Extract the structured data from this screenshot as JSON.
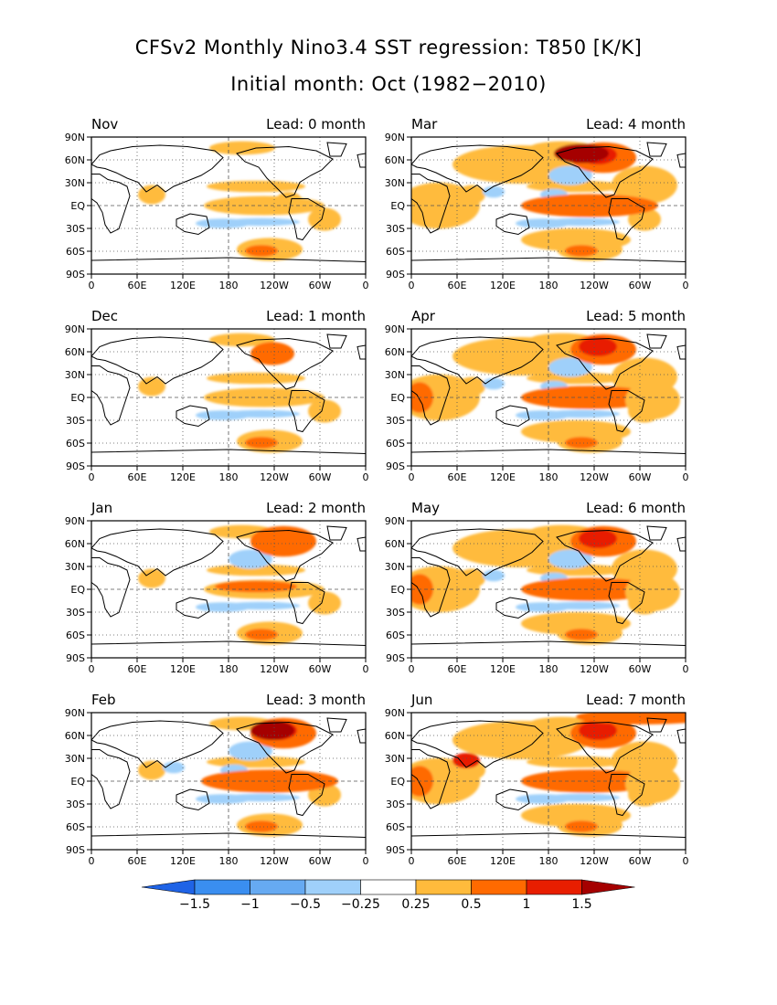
{
  "title_line1": "CFSv2 Monthly Nino3.4 SST regression: T850 [K/K]",
  "title_line2": "Initial month: Oct (1982−2010)",
  "lat_labels": [
    "90N",
    "60N",
    "30N",
    "EQ",
    "30S",
    "60S",
    "90S"
  ],
  "lon_labels": [
    "0",
    "60E",
    "120E",
    "180",
    "120W",
    "60W",
    "0"
  ],
  "lon_labels_right_column": [
    "0",
    "60E",
    "120E",
    "180",
    "120W",
    "60W",
    "0"
  ],
  "panels": [
    {
      "month": "Nov",
      "lead": "Lead: 0 month"
    },
    {
      "month": "Mar",
      "lead": "Lead: 4 month"
    },
    {
      "month": "Dec",
      "lead": "Lead: 1 month"
    },
    {
      "month": "Apr",
      "lead": "Lead: 5 month"
    },
    {
      "month": "Jan",
      "lead": "Lead: 2 month"
    },
    {
      "month": "May",
      "lead": "Lead: 6 month"
    },
    {
      "month": "Feb",
      "lead": "Lead: 3 month"
    },
    {
      "month": "Jun",
      "lead": "Lead: 7 month"
    }
  ],
  "colorbar": {
    "labels": [
      "−1.5",
      "−1",
      "−0.5",
      "−0.25",
      "0.25",
      "0.5",
      "1",
      "1.5"
    ],
    "colors": [
      "#1f63e6",
      "#3a8ef0",
      "#66aaf2",
      "#9fd0fa",
      "#ffffff",
      "#ffbb3c",
      "#ff6a00",
      "#e81e00",
      "#a50000"
    ]
  },
  "anomaly_colors": {
    "light_blue": "#9fd0fa",
    "mid_blue": "#66aaf2",
    "light_orange": "#ffbb3c",
    "orange": "#ff6a00",
    "red": "#e81e00",
    "dark_red": "#a50000"
  }
}
